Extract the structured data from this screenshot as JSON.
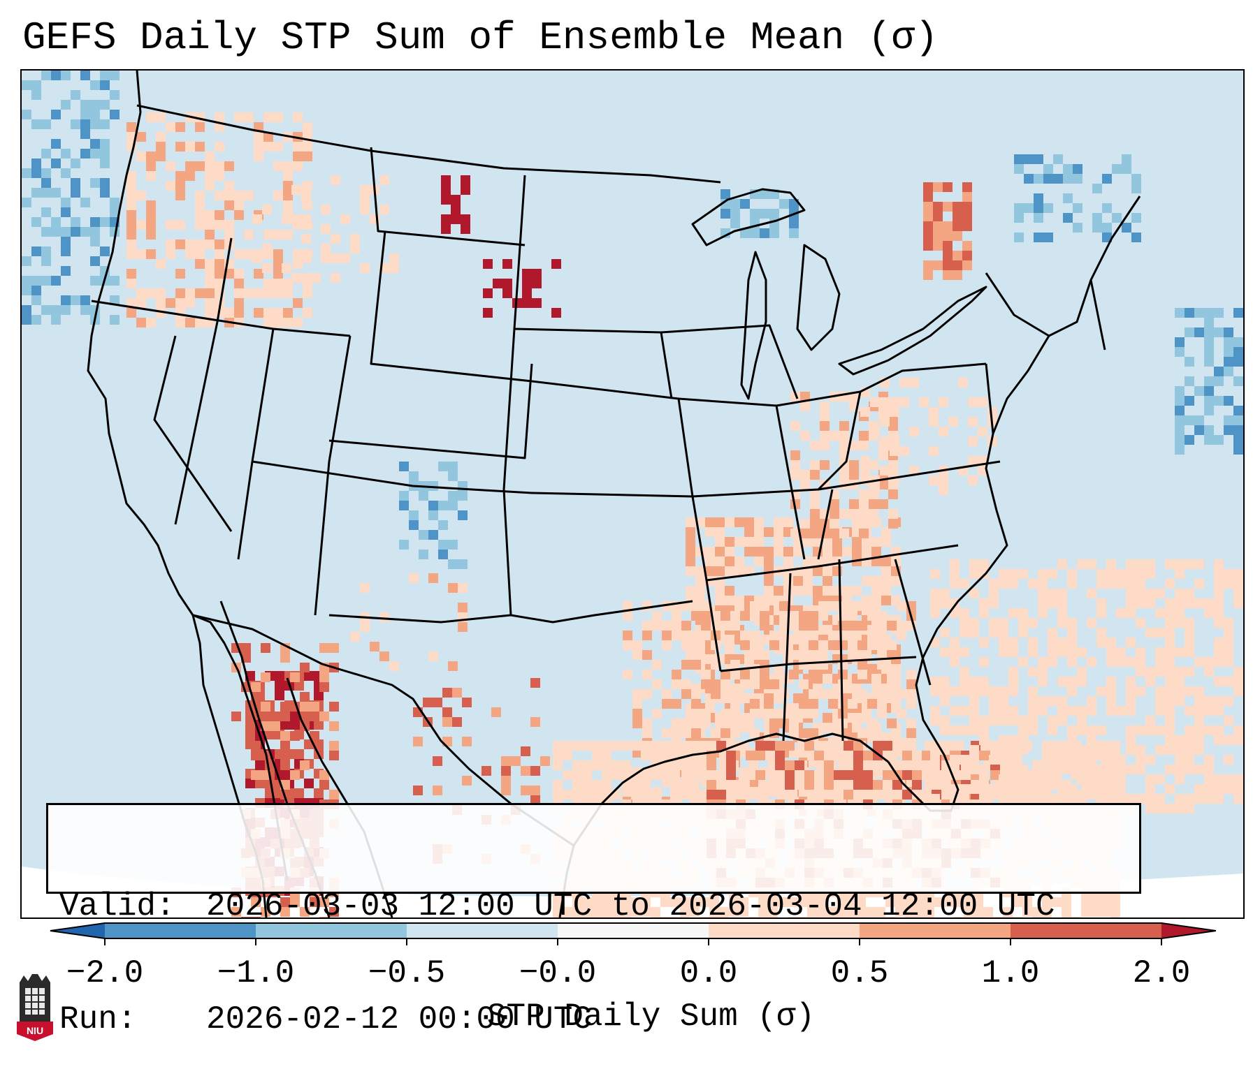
{
  "title": "GEFS Daily STP Sum of Ensemble Mean (σ)",
  "info": {
    "valid_label": "Valid:",
    "valid_value": "2026-03-03 12:00 UTC to 2026-03-04 12:00 UTC",
    "run_label": "Run:",
    "run_value": "2026-02-12 00:00 UTC"
  },
  "colorbar": {
    "label": "STP Daily Sum (σ)",
    "ticks": [
      "−2.0",
      "−1.0",
      "−0.5",
      "−0.0",
      "0.0",
      "0.5",
      "1.0",
      "2.0"
    ],
    "bins": [
      {
        "from": -2.0,
        "to": -1.0,
        "color": "#4f94c6"
      },
      {
        "from": -1.0,
        "to": -0.5,
        "color": "#92c5de"
      },
      {
        "from": -0.5,
        "to": -0.0,
        "color": "#d1e5f0"
      },
      {
        "from": -0.0,
        "to": 0.0,
        "color": "#f7f7f7"
      },
      {
        "from": 0.0,
        "to": 0.5,
        "color": "#fddbc7"
      },
      {
        "from": 0.5,
        "to": 1.0,
        "color": "#f4a582"
      },
      {
        "from": 1.0,
        "to": 2.0,
        "color": "#d6604d"
      }
    ],
    "under_color": "#2166ac",
    "over_color": "#b2182b"
  },
  "colors": {
    "background": "#d1e5f0",
    "weak_positive": "#fddbc7",
    "moderate_positive": "#f4a582",
    "strong_positive": "#d6604d",
    "extreme_positive": "#b2182b",
    "weak_negative": "#92c5de",
    "moderate_negative": "#4f94c6"
  },
  "map": {
    "region": "Contiguous United States",
    "projection_note": "Lambert conformal",
    "boundaries": [
      "coastlines",
      "state-lines",
      "country-borders"
    ]
  },
  "logo": {
    "text": "NIU",
    "name": "niu-logo-icon"
  }
}
